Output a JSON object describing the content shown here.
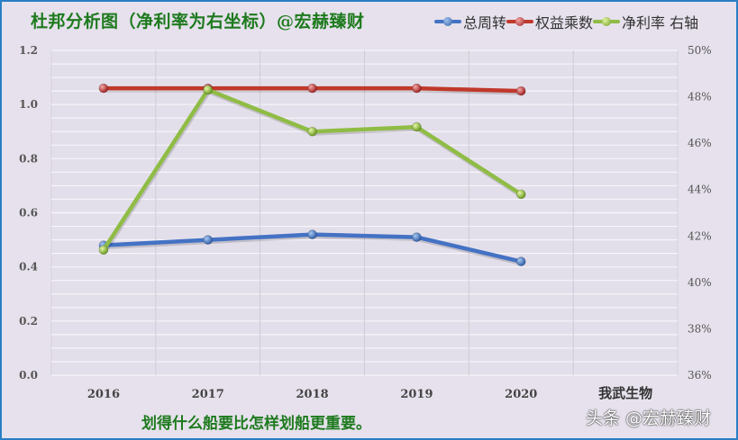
{
  "header": {
    "title": "杜邦分析图（净利率为右坐标）@宏赫臻财"
  },
  "legend": [
    {
      "label": "总周转",
      "color": "#4472c4"
    },
    {
      "label": "权益乘数",
      "color": "#c0392b"
    },
    {
      "label": "净利率 右轴",
      "color": "#8fbc45"
    }
  ],
  "footer": {
    "caption": "划得什么船要比怎样划船更重要。",
    "watermark": "头条 @宏赫臻财"
  },
  "colors": {
    "background": "#e6e1ec",
    "border": "#2a7fc4",
    "title": "#1d7a1d",
    "total_turnover": "#4472c4",
    "equity_multiplier": "#c0392b",
    "net_margin": "#8fbc45"
  },
  "chart_data": {
    "type": "line",
    "title": "杜邦分析图（净利率为右坐标）@宏赫臻财",
    "categories": [
      "2016",
      "2017",
      "2018",
      "2019",
      "2020",
      "我武生物"
    ],
    "series": [
      {
        "name": "总周转",
        "axis": "left",
        "values": [
          0.48,
          0.5,
          0.52,
          0.51,
          0.42,
          null
        ]
      },
      {
        "name": "权益乘数",
        "axis": "left",
        "values": [
          1.06,
          1.06,
          1.06,
          1.06,
          1.05,
          null
        ]
      },
      {
        "name": "净利率 右轴",
        "axis": "right",
        "values": [
          41.4,
          48.3,
          46.5,
          46.7,
          43.8,
          null
        ],
        "unit": "%"
      }
    ],
    "xlabel": "",
    "ylabel": "",
    "ylim": [
      0,
      1.2
    ],
    "yticks": [
      "0.0",
      "0.2",
      "0.4",
      "0.6",
      "0.8",
      "1.0",
      "1.2"
    ],
    "y2lim": [
      36,
      50
    ],
    "y2ticks": [
      "36%",
      "38%",
      "40%",
      "42%",
      "44%",
      "46%",
      "48%",
      "50%"
    ],
    "grid": true,
    "legend_position": "top-right"
  }
}
